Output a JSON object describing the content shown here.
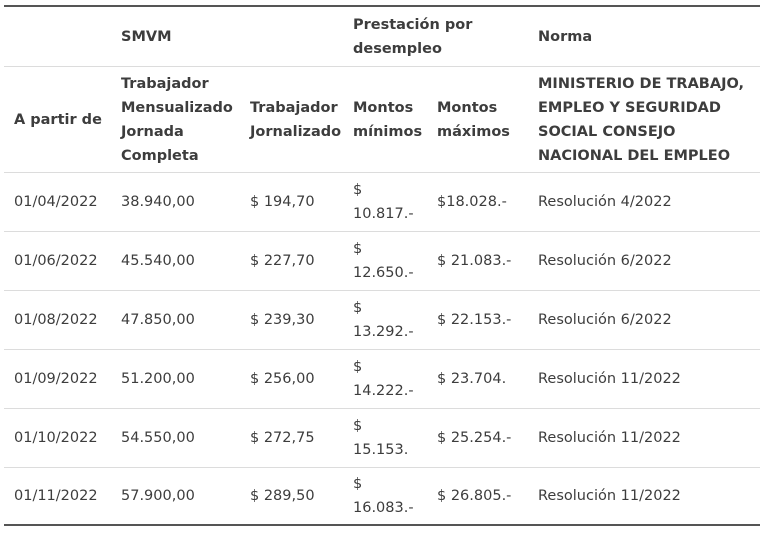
{
  "header_row_1": {
    "smvm": "SMVM",
    "prestacion": "Prestación por desempleo",
    "norma": "Norma"
  },
  "header_row_2": {
    "a_partir_de": "A partir de",
    "trabajador_mensualizado": "Trabajador Mensualizado Jornada Completa",
    "trabajador_jornalizado": "Trabajador Jornalizado",
    "montos_minimos": "Montos mínimos",
    "montos_maximos": "Montos máximos",
    "ministerio": "MINISTERIO DE TRABAJO, EMPLEO Y SEGURIDAD SOCIAL CONSEJO NACIONAL DEL EMPLEO"
  },
  "rows": [
    {
      "fecha": "01/04/2022",
      "mensualizado": "38.940,00",
      "jornalizado": "$ 194,70",
      "minimo": "$ 10.817.-",
      "maximo": "$18.028.-",
      "norma": "Resolución 4/2022"
    },
    {
      "fecha": "01/06/2022",
      "mensualizado": "45.540,00",
      "jornalizado": "$ 227,70",
      "minimo": "$ 12.650.-",
      "maximo": "$ 21.083.-",
      "norma": "Resolución 6/2022"
    },
    {
      "fecha": "01/08/2022",
      "mensualizado": "47.850,00",
      "jornalizado": "$ 239,30",
      "minimo": "$ 13.292.-",
      "maximo": "$ 22.153.-",
      "norma": "Resolución 6/2022"
    },
    {
      "fecha": "01/09/2022",
      "mensualizado": "51.200,00",
      "jornalizado": "$ 256,00",
      "minimo": "$ 14.222.-",
      "maximo": "$ 23.704.",
      "norma": "Resolución 11/2022"
    },
    {
      "fecha": "01/10/2022",
      "mensualizado": "54.550,00",
      "jornalizado": "$ 272,75",
      "minimo": "$ 15.153.",
      "maximo": "$ 25.254.-",
      "norma": "Resolución 11/2022"
    },
    {
      "fecha": "01/11/2022",
      "mensualizado": "57.900,00",
      "jornalizado": "$ 289,50",
      "minimo": "$ 16.083.-",
      "maximo": "$ 26.805.-",
      "norma": "Resolución 11/2022"
    }
  ]
}
